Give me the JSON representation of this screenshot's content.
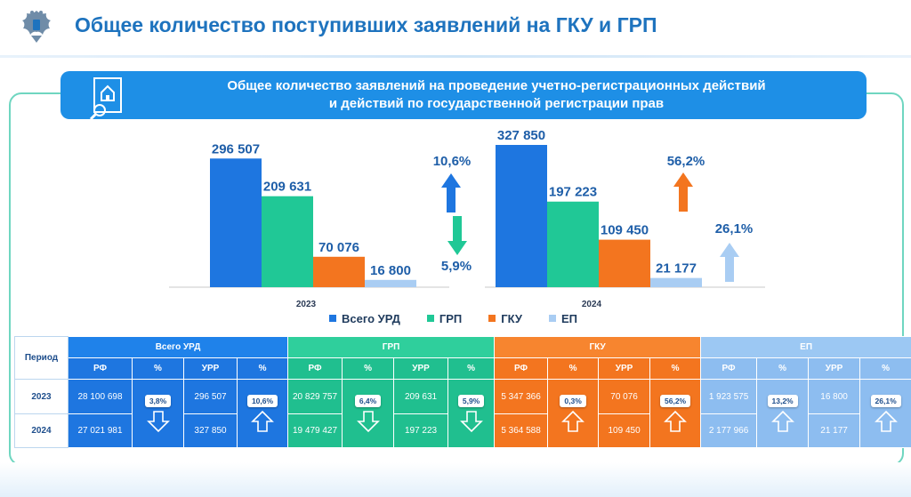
{
  "header": {
    "title": "Общее количество поступивших заявлений на ГКУ и ГРП"
  },
  "banner": {
    "line1": "Общее количество заявлений на проведение учетно-регистрационных действий",
    "line2": "и действий по государственной регистрации прав"
  },
  "chart_data": {
    "type": "bar",
    "title": "Общее количество заявлений на проведение учетно-регистрационных действий и действий по государственной регистрации прав",
    "categories": [
      "2023",
      "2024"
    ],
    "series": [
      {
        "name": "Всего УРД",
        "color": "#1e76e0",
        "values": [
          296507,
          327850
        ],
        "labels": [
          "296 507",
          "327 850"
        ]
      },
      {
        "name": "ГРП",
        "color": "#20c896",
        "values": [
          209631,
          197223
        ],
        "labels": [
          "209 631",
          "197 223"
        ]
      },
      {
        "name": "ГКУ",
        "color": "#f3751f",
        "values": [
          70076,
          109450
        ],
        "labels": [
          "70 076",
          "109 450"
        ]
      },
      {
        "name": "ЕП",
        "color": "#a9cdf3",
        "values": [
          16800,
          21177
        ],
        "labels": [
          "16 800",
          "21 177"
        ]
      }
    ],
    "annotations": [
      {
        "text": "10,6%",
        "direction": "up",
        "color": "#1e76e0",
        "series": "Всего УРД"
      },
      {
        "text": "5,9%",
        "direction": "down",
        "color": "#20c896",
        "series": "ГРП"
      },
      {
        "text": "56,2%",
        "direction": "up",
        "color": "#f3751f",
        "series": "ГКУ"
      },
      {
        "text": "26,1%",
        "direction": "up",
        "color": "#a9cdf3",
        "series": "ЕП"
      }
    ],
    "legend_position": "bottom"
  },
  "table": {
    "period_label": "Период",
    "groups": [
      {
        "key": "urd",
        "title": "Всего УРД",
        "sub": [
          "РФ",
          "%",
          "УРР",
          "%"
        ],
        "rf": [
          "28 100 698",
          "27 021 981"
        ],
        "rf_pct": "3,8%",
        "rf_dir": "down",
        "urr": [
          "296 507",
          "327 850"
        ],
        "urr_pct": "10,6%",
        "urr_dir": "up"
      },
      {
        "key": "grp",
        "title": "ГРП",
        "sub": [
          "РФ",
          "%",
          "УРР",
          "%"
        ],
        "rf": [
          "20 829 757",
          "19 479 427"
        ],
        "rf_pct": "6,4%",
        "rf_dir": "down",
        "urr": [
          "209 631",
          "197 223"
        ],
        "urr_pct": "5,9%",
        "urr_dir": "down"
      },
      {
        "key": "gku",
        "title": "ГКУ",
        "sub": [
          "РФ",
          "%",
          "УРР",
          "%"
        ],
        "rf": [
          "5 347 366",
          "5 364 588"
        ],
        "rf_pct": "0,3%",
        "rf_dir": "up",
        "urr": [
          "70 076",
          "109 450"
        ],
        "urr_pct": "56,2%",
        "urr_dir": "up"
      },
      {
        "key": "ep",
        "title": "ЕП",
        "sub": [
          "РФ",
          "%",
          "УРР",
          "%"
        ],
        "rf": [
          "1 923 575",
          "2 177 966"
        ],
        "rf_pct": "13,2%",
        "rf_dir": "up",
        "urr": [
          "16 800",
          "21 177"
        ],
        "urr_pct": "26,1%",
        "urr_dir": "up"
      }
    ],
    "years": [
      "2023",
      "2024"
    ]
  }
}
